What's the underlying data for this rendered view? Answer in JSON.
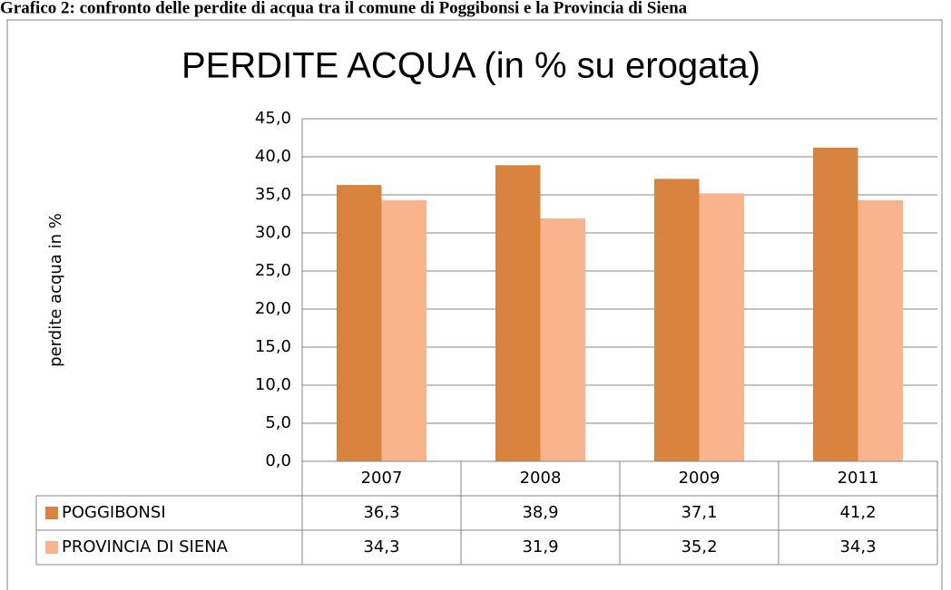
{
  "caption": "Grafico 2: confronto delle perdite di acqua tra il comune di Poggibonsi e la Provincia di Siena",
  "chart_data": {
    "type": "bar",
    "title": "PERDITE ACQUA (in % su erogata)",
    "y_label": "perdite acqua in %",
    "categories": [
      "2007",
      "2008",
      "2009",
      "2011"
    ],
    "series": [
      {
        "name": "POGGIBONSI",
        "color": "#d9843e",
        "values": [
          36.3,
          38.9,
          37.1,
          41.2
        ],
        "value_labels": [
          "36,3",
          "38,9",
          "37,1",
          "41,2"
        ]
      },
      {
        "name": "PROVINCIA DI SIENA",
        "color": "#f9b48e",
        "values": [
          34.3,
          31.9,
          35.2,
          34.3
        ],
        "value_labels": [
          "34,3",
          "31,9",
          "35,2",
          "34,3"
        ]
      }
    ],
    "ylim": [
      0,
      45
    ],
    "yticks": [
      {
        "value": 0,
        "label": "0,0"
      },
      {
        "value": 5,
        "label": "5,0"
      },
      {
        "value": 10,
        "label": "10,0"
      },
      {
        "value": 15,
        "label": "15,0"
      },
      {
        "value": 20,
        "label": "20,0"
      },
      {
        "value": 25,
        "label": "25,0"
      },
      {
        "value": 30,
        "label": "30,0"
      },
      {
        "value": 35,
        "label": "35,0"
      },
      {
        "value": 40,
        "label": "40,0"
      },
      {
        "value": 45,
        "label": "45,0"
      }
    ],
    "grid": true
  }
}
